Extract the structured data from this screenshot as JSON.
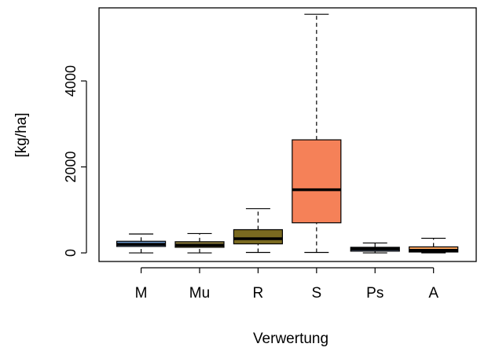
{
  "chart_data": {
    "type": "box",
    "title": "",
    "xlabel": "Verwertung",
    "ylabel": "[kg/ha]",
    "categories": [
      "M",
      "Mu",
      "R",
      "S",
      "Ps",
      "A"
    ],
    "ylim": [
      -200,
      5700
    ],
    "yticks": [
      0,
      2000,
      4000
    ],
    "grid": false,
    "colors": [
      "#6b9bd1",
      "#8a7a3a",
      "#7a6a20",
      "#f58158",
      "#8fa8d8",
      "#f5a05a"
    ],
    "series": [
      {
        "category": "M",
        "min": 0,
        "q1": 150,
        "median": 200,
        "q3": 270,
        "max": 440
      },
      {
        "category": "Mu",
        "min": 0,
        "q1": 130,
        "median": 180,
        "q3": 260,
        "max": 450
      },
      {
        "category": "R",
        "min": 10,
        "q1": 210,
        "median": 330,
        "q3": 540,
        "max": 1030
      },
      {
        "category": "S",
        "min": 10,
        "q1": 700,
        "median": 1470,
        "q3": 2630,
        "max": 5550
      },
      {
        "category": "Ps",
        "min": 0,
        "q1": 40,
        "median": 90,
        "q3": 130,
        "max": 230
      },
      {
        "category": "A",
        "min": 0,
        "q1": 20,
        "median": 60,
        "q3": 140,
        "max": 340
      }
    ]
  }
}
